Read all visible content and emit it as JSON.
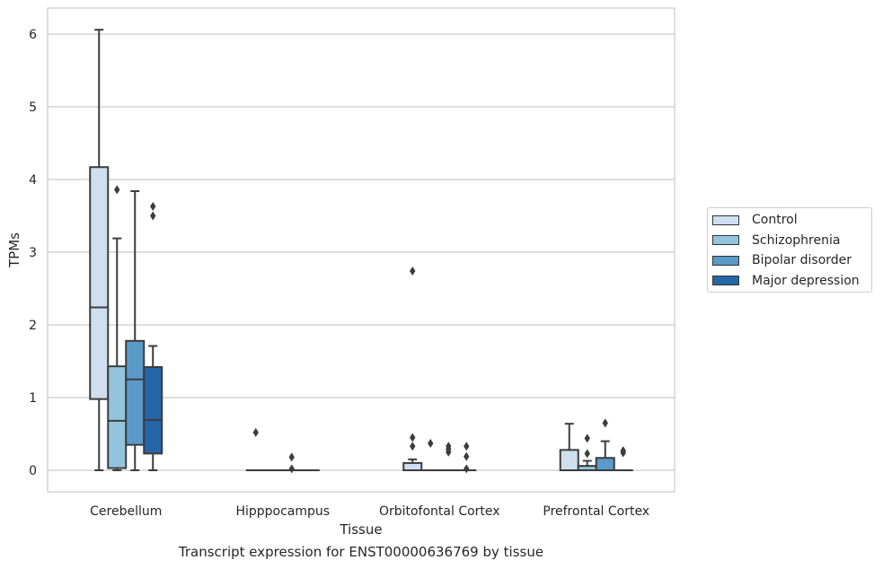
{
  "caption": "Transcript expression for ENST00000636769 by tissue",
  "chart_data": {
    "type": "box",
    "xlabel": "Tissue",
    "ylabel": "TPMs",
    "ylim": [
      -0.3,
      6.35
    ],
    "yticks": [
      0,
      1,
      2,
      3,
      4,
      5,
      6
    ],
    "grid": "horizontal",
    "legend_position": "center-right",
    "categories": [
      "Cerebellum",
      "Hipppocampus",
      "Orbitofontal Cortex",
      "Prefrontal Cortex"
    ],
    "series": [
      {
        "name": "Control",
        "color": "#cfdfef",
        "boxes": [
          {
            "q1": 0.98,
            "median": 2.24,
            "q3": 4.17,
            "whislo": 0,
            "whishi": 6.06,
            "fliers": []
          },
          {
            "q1": 0,
            "median": 0,
            "q3": 0,
            "whislo": 0,
            "whishi": 0,
            "fliers": [
              0.52
            ]
          },
          {
            "q1": 0,
            "median": 0,
            "q3": 0.1,
            "whislo": 0,
            "whishi": 0.15,
            "fliers": [
              2.74,
              0.45,
              0.33
            ]
          },
          {
            "q1": 0,
            "median": 0,
            "q3": 0.28,
            "whislo": 0,
            "whishi": 0.64,
            "fliers": []
          }
        ]
      },
      {
        "name": "Schizophrenia",
        "color": "#93c4de",
        "boxes": [
          {
            "q1": 0.03,
            "median": 0.68,
            "q3": 1.43,
            "whislo": 0,
            "whishi": 3.19,
            "fliers": [
              3.86
            ]
          },
          {
            "q1": 0,
            "median": 0,
            "q3": 0,
            "whislo": 0,
            "whishi": 0,
            "fliers": []
          },
          {
            "q1": 0,
            "median": 0,
            "q3": 0,
            "whislo": 0,
            "whishi": 0,
            "fliers": [
              0.37
            ]
          },
          {
            "q1": 0,
            "median": 0,
            "q3": 0.06,
            "whislo": 0,
            "whishi": 0.13,
            "fliers": [
              0.44,
              0.23
            ]
          }
        ]
      },
      {
        "name": "Bipolar disorder",
        "color": "#5a9ac9",
        "boxes": [
          {
            "q1": 0.35,
            "median": 1.25,
            "q3": 1.78,
            "whislo": 0,
            "whishi": 3.84,
            "fliers": []
          },
          {
            "q1": 0,
            "median": 0,
            "q3": 0,
            "whislo": 0,
            "whishi": 0,
            "fliers": [
              0.18,
              0.02
            ]
          },
          {
            "q1": 0,
            "median": 0,
            "q3": 0,
            "whislo": 0,
            "whishi": 0,
            "fliers": [
              0.33,
              0.29,
              0.25
            ]
          },
          {
            "q1": 0,
            "median": 0,
            "q3": 0.17,
            "whislo": 0,
            "whishi": 0.4,
            "fliers": [
              0.65
            ]
          }
        ]
      },
      {
        "name": "Major depression",
        "color": "#2566a8",
        "boxes": [
          {
            "q1": 0.23,
            "median": 0.69,
            "q3": 1.42,
            "whislo": 0,
            "whishi": 1.71,
            "fliers": [
              3.63,
              3.5
            ]
          },
          {
            "q1": 0,
            "median": 0,
            "q3": 0,
            "whislo": 0,
            "whishi": 0,
            "fliers": []
          },
          {
            "q1": 0,
            "median": 0,
            "q3": 0,
            "whislo": 0,
            "whishi": 0,
            "fliers": [
              0.33,
              0.19,
              0.02
            ]
          },
          {
            "q1": 0,
            "median": 0,
            "q3": 0,
            "whislo": 0,
            "whishi": 0,
            "fliers": [
              0.27,
              0.24
            ]
          }
        ]
      }
    ]
  }
}
